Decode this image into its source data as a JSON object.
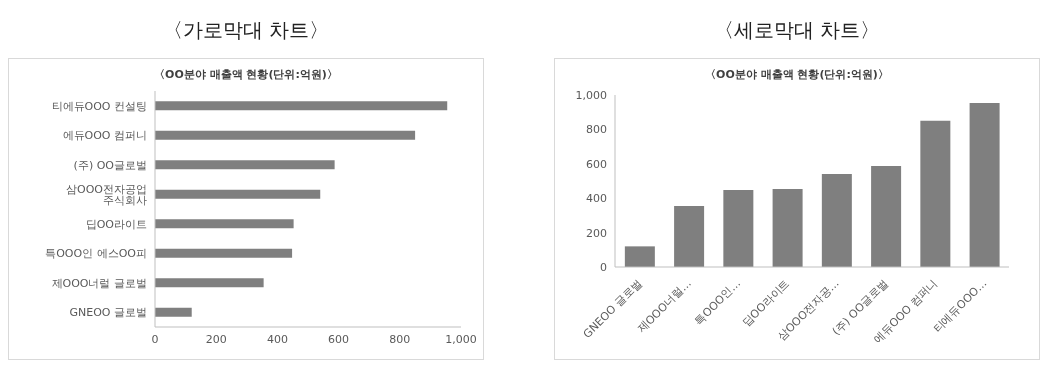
{
  "chart_data": [
    {
      "type": "bar",
      "orientation": "horizontal",
      "title": "〈가로막대 차트〉",
      "subtitle": "〈OO분야 매출액 현황(단위:억원)〉",
      "categories": [
        "티에듀OOO 컨설팅",
        "에듀OOO 컴퍼니",
        "(주) OO글로벌",
        "삼OOO전자공업 주식회사",
        "딥OO라이트",
        "특OOO인 에스OO피",
        "제OOO너럴 글로벌",
        "GNEOO 글로벌"
      ],
      "values": [
        955,
        850,
        587,
        540,
        453,
        448,
        355,
        120
      ],
      "color": "#7f7f7f",
      "xlim": [
        0,
        1000
      ],
      "xticks": [
        0,
        200,
        400,
        600,
        800,
        {
          "value": 1000,
          "label": "1,000"
        }
      ],
      "grid": false
    },
    {
      "type": "bar",
      "title": "〈세로막대 차트〉",
      "subtitle": "〈OO분야 매출액 현황(단위:억원)〉",
      "categories": [
        "GNEOO 글로벌",
        "제OOO너럴…",
        "특OOO인…",
        "딥OO라이트",
        "삼OOO전자공…",
        "(주) OO글로벌",
        "에듀OOO 컴퍼니",
        "티에듀OOO…"
      ],
      "values": [
        120,
        355,
        448,
        453,
        540,
        587,
        850,
        953
      ],
      "color": "#7f7f7f",
      "ylim": [
        0,
        1000
      ],
      "yticks": [
        0,
        200,
        400,
        600,
        800,
        {
          "value": 1000,
          "label": "1,000"
        }
      ],
      "grid": false
    }
  ]
}
